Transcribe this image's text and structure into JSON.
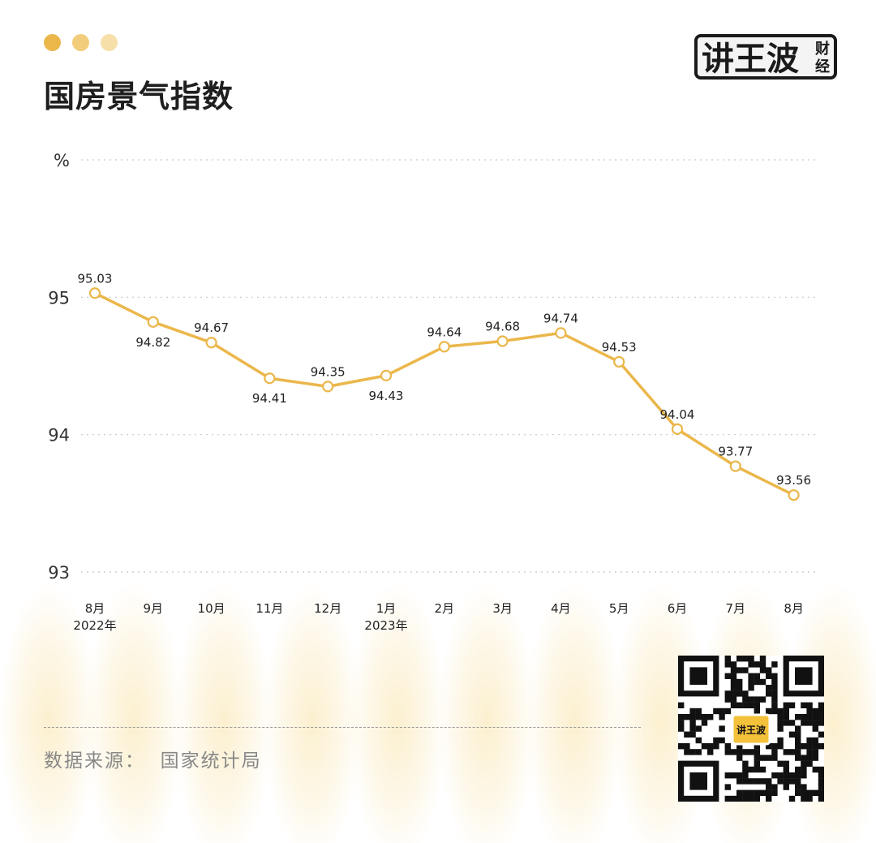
{
  "header": {
    "title": "国房景气指数",
    "dots": [
      "#ebb74b",
      "#f2cd7c",
      "#f6dfa8"
    ]
  },
  "logo": {
    "main_text": "讲王波",
    "sub_text_1": "财",
    "sub_text_2": "经"
  },
  "footer": {
    "source_label": "数据来源：",
    "source_value": "国家统计局"
  },
  "qr": {
    "badge_text": "讲王波"
  },
  "colors": {
    "line": "#ebb74b",
    "grid": "#c8c8c8"
  },
  "chart_data": {
    "type": "line",
    "title": "国房景气指数",
    "unit_label": "%",
    "categories": [
      "8月",
      "9月",
      "10月",
      "11月",
      "12月",
      "1月",
      "2月",
      "3月",
      "4月",
      "5月",
      "6月",
      "7月",
      "8月"
    ],
    "category_sublabels": [
      "2022年",
      "",
      "",
      "",
      "",
      "2023年",
      "",
      "",
      "",
      "",
      "",
      "",
      ""
    ],
    "values": [
      95.03,
      94.82,
      94.67,
      94.41,
      94.35,
      94.43,
      94.64,
      94.68,
      94.74,
      94.53,
      94.04,
      93.77,
      93.56
    ],
    "value_labels": [
      "95.03",
      "94.82",
      "94.67",
      "94.41",
      "94.35",
      "94.43",
      "94.64",
      "94.68",
      "94.74",
      "94.53",
      "94.04",
      "93.77",
      "93.56"
    ],
    "label_positions": [
      "above",
      "below",
      "above",
      "below",
      "above",
      "below",
      "above",
      "above",
      "above",
      "above",
      "above",
      "above",
      "above"
    ],
    "y_ticks": [
      93,
      94,
      95
    ],
    "ylim": [
      93,
      96
    ],
    "grid": true,
    "xlabel": "",
    "ylabel": ""
  }
}
